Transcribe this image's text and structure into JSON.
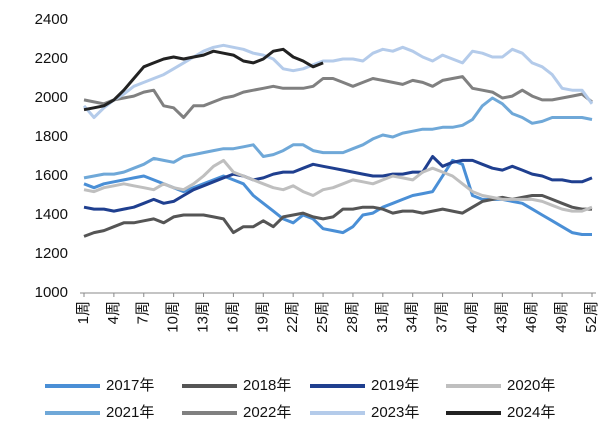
{
  "chart_data": {
    "type": "line",
    "categories": [
      "1周",
      null,
      null,
      "4周",
      null,
      null,
      "7周",
      null,
      null,
      "10周",
      null,
      null,
      "13周",
      null,
      null,
      "16周",
      null,
      null,
      "19周",
      null,
      null,
      "22周",
      null,
      null,
      "25周",
      null,
      null,
      "28周",
      null,
      null,
      "31周",
      null,
      null,
      "34周",
      null,
      null,
      "37周",
      null,
      null,
      "40周",
      null,
      null,
      "43周",
      null,
      null,
      "46周",
      null,
      null,
      "49周",
      null,
      null,
      "52周"
    ],
    "ylim": [
      1000,
      2400
    ],
    "yticks": [
      1000,
      1200,
      1400,
      1600,
      1800,
      2000,
      2200,
      2400
    ],
    "grid": false,
    "legend": "bottom",
    "series": [
      {
        "name": "2017年",
        "color": "#4a8fd6",
        "values": [
          1560,
          1540,
          1560,
          1570,
          1580,
          1590,
          1600,
          1580,
          1560,
          1540,
          1520,
          1540,
          1560,
          1580,
          1600,
          1580,
          1560,
          1500,
          1460,
          1420,
          1380,
          1360,
          1400,
          1380,
          1330,
          1320,
          1310,
          1340,
          1400,
          1410,
          1440,
          1460,
          1480,
          1500,
          1510,
          1520,
          1600,
          1680,
          1660,
          1500,
          1480,
          1480,
          1480,
          1470,
          1460,
          1430,
          1400,
          1370,
          1340,
          1310,
          1300,
          1300
        ]
      },
      {
        "name": "2018年",
        "color": "#555555",
        "values": [
          1290,
          1310,
          1320,
          1340,
          1360,
          1360,
          1370,
          1380,
          1360,
          1390,
          1400,
          1400,
          1400,
          1390,
          1380,
          1310,
          1340,
          1340,
          1370,
          1340,
          1390,
          1400,
          1410,
          1390,
          1380,
          1390,
          1430,
          1430,
          1440,
          1440,
          1430,
          1410,
          1420,
          1420,
          1410,
          1420,
          1430,
          1420,
          1410,
          1440,
          1470,
          1480,
          1490,
          1480,
          1490,
          1500,
          1500,
          1480,
          1460,
          1440,
          1430,
          1430
        ]
      },
      {
        "name": "2019年",
        "color": "#1f3f8f",
        "values": [
          1440,
          1430,
          1430,
          1420,
          1430,
          1440,
          1460,
          1480,
          1460,
          1470,
          1500,
          1530,
          1550,
          1570,
          1590,
          1610,
          1600,
          1580,
          1590,
          1610,
          1620,
          1620,
          1640,
          1660,
          1650,
          1640,
          1630,
          1620,
          1610,
          1600,
          1600,
          1610,
          1610,
          1620,
          1620,
          1700,
          1650,
          1670,
          1680,
          1680,
          1660,
          1640,
          1630,
          1650,
          1630,
          1610,
          1600,
          1580,
          1580,
          1570,
          1570,
          1590
        ]
      },
      {
        "name": "2020年",
        "color": "#bfbfbf",
        "values": [
          1530,
          1520,
          1540,
          1550,
          1560,
          1550,
          1540,
          1530,
          1560,
          1540,
          1530,
          1560,
          1600,
          1650,
          1680,
          1620,
          1600,
          1580,
          1560,
          1540,
          1530,
          1550,
          1520,
          1500,
          1530,
          1540,
          1560,
          1580,
          1570,
          1560,
          1580,
          1600,
          1590,
          1580,
          1620,
          1640,
          1620,
          1600,
          1560,
          1520,
          1500,
          1490,
          1480,
          1480,
          1480,
          1480,
          1470,
          1450,
          1430,
          1420,
          1420,
          1440
        ]
      },
      {
        "name": "2021年",
        "color": "#6fa8d8",
        "values": [
          1590,
          1600,
          1610,
          1610,
          1620,
          1640,
          1660,
          1690,
          1680,
          1670,
          1700,
          1710,
          1720,
          1730,
          1740,
          1740,
          1750,
          1760,
          1700,
          1710,
          1730,
          1760,
          1760,
          1730,
          1720,
          1720,
          1720,
          1740,
          1760,
          1790,
          1810,
          1800,
          1820,
          1830,
          1840,
          1840,
          1850,
          1850,
          1860,
          1890,
          1960,
          2000,
          1970,
          1920,
          1900,
          1870,
          1880,
          1900,
          1900,
          1900,
          1900,
          1890
        ]
      },
      {
        "name": "2022年",
        "color": "#808080",
        "values": [
          1990,
          1980,
          1970,
          1990,
          2000,
          2010,
          2030,
          2040,
          1960,
          1950,
          1900,
          1960,
          1960,
          1980,
          2000,
          2010,
          2030,
          2040,
          2050,
          2060,
          2050,
          2050,
          2050,
          2060,
          2100,
          2100,
          2080,
          2060,
          2080,
          2100,
          2090,
          2080,
          2070,
          2090,
          2080,
          2060,
          2090,
          2100,
          2110,
          2050,
          2040,
          2030,
          2000,
          2010,
          2040,
          2010,
          1990,
          1990,
          2000,
          2010,
          2020,
          1980
        ]
      },
      {
        "name": "2023年",
        "color": "#b4cbea",
        "values": [
          1960,
          1900,
          1950,
          1990,
          2020,
          2060,
          2080,
          2100,
          2120,
          2150,
          2180,
          2210,
          2240,
          2260,
          2270,
          2260,
          2250,
          2230,
          2220,
          2200,
          2150,
          2140,
          2150,
          2170,
          2190,
          2190,
          2200,
          2200,
          2190,
          2230,
          2250,
          2240,
          2260,
          2240,
          2210,
          2190,
          2220,
          2200,
          2180,
          2240,
          2230,
          2210,
          2210,
          2250,
          2230,
          2180,
          2160,
          2120,
          2050,
          2040,
          2040,
          1970
        ]
      },
      {
        "name": "2024年",
        "color": "#222222",
        "values": [
          1940,
          1950,
          1960,
          1990,
          2040,
          2100,
          2160,
          2180,
          2200,
          2210,
          2200,
          2210,
          2220,
          2240,
          2230,
          2220,
          2190,
          2180,
          2200,
          2240,
          2250,
          2210,
          2190,
          2160,
          2180,
          null,
          null,
          null,
          null,
          null,
          null,
          null,
          null,
          null,
          null,
          null,
          null,
          null,
          null,
          null,
          null,
          null,
          null,
          null,
          null,
          null,
          null,
          null,
          null,
          null,
          null,
          null
        ]
      }
    ]
  }
}
